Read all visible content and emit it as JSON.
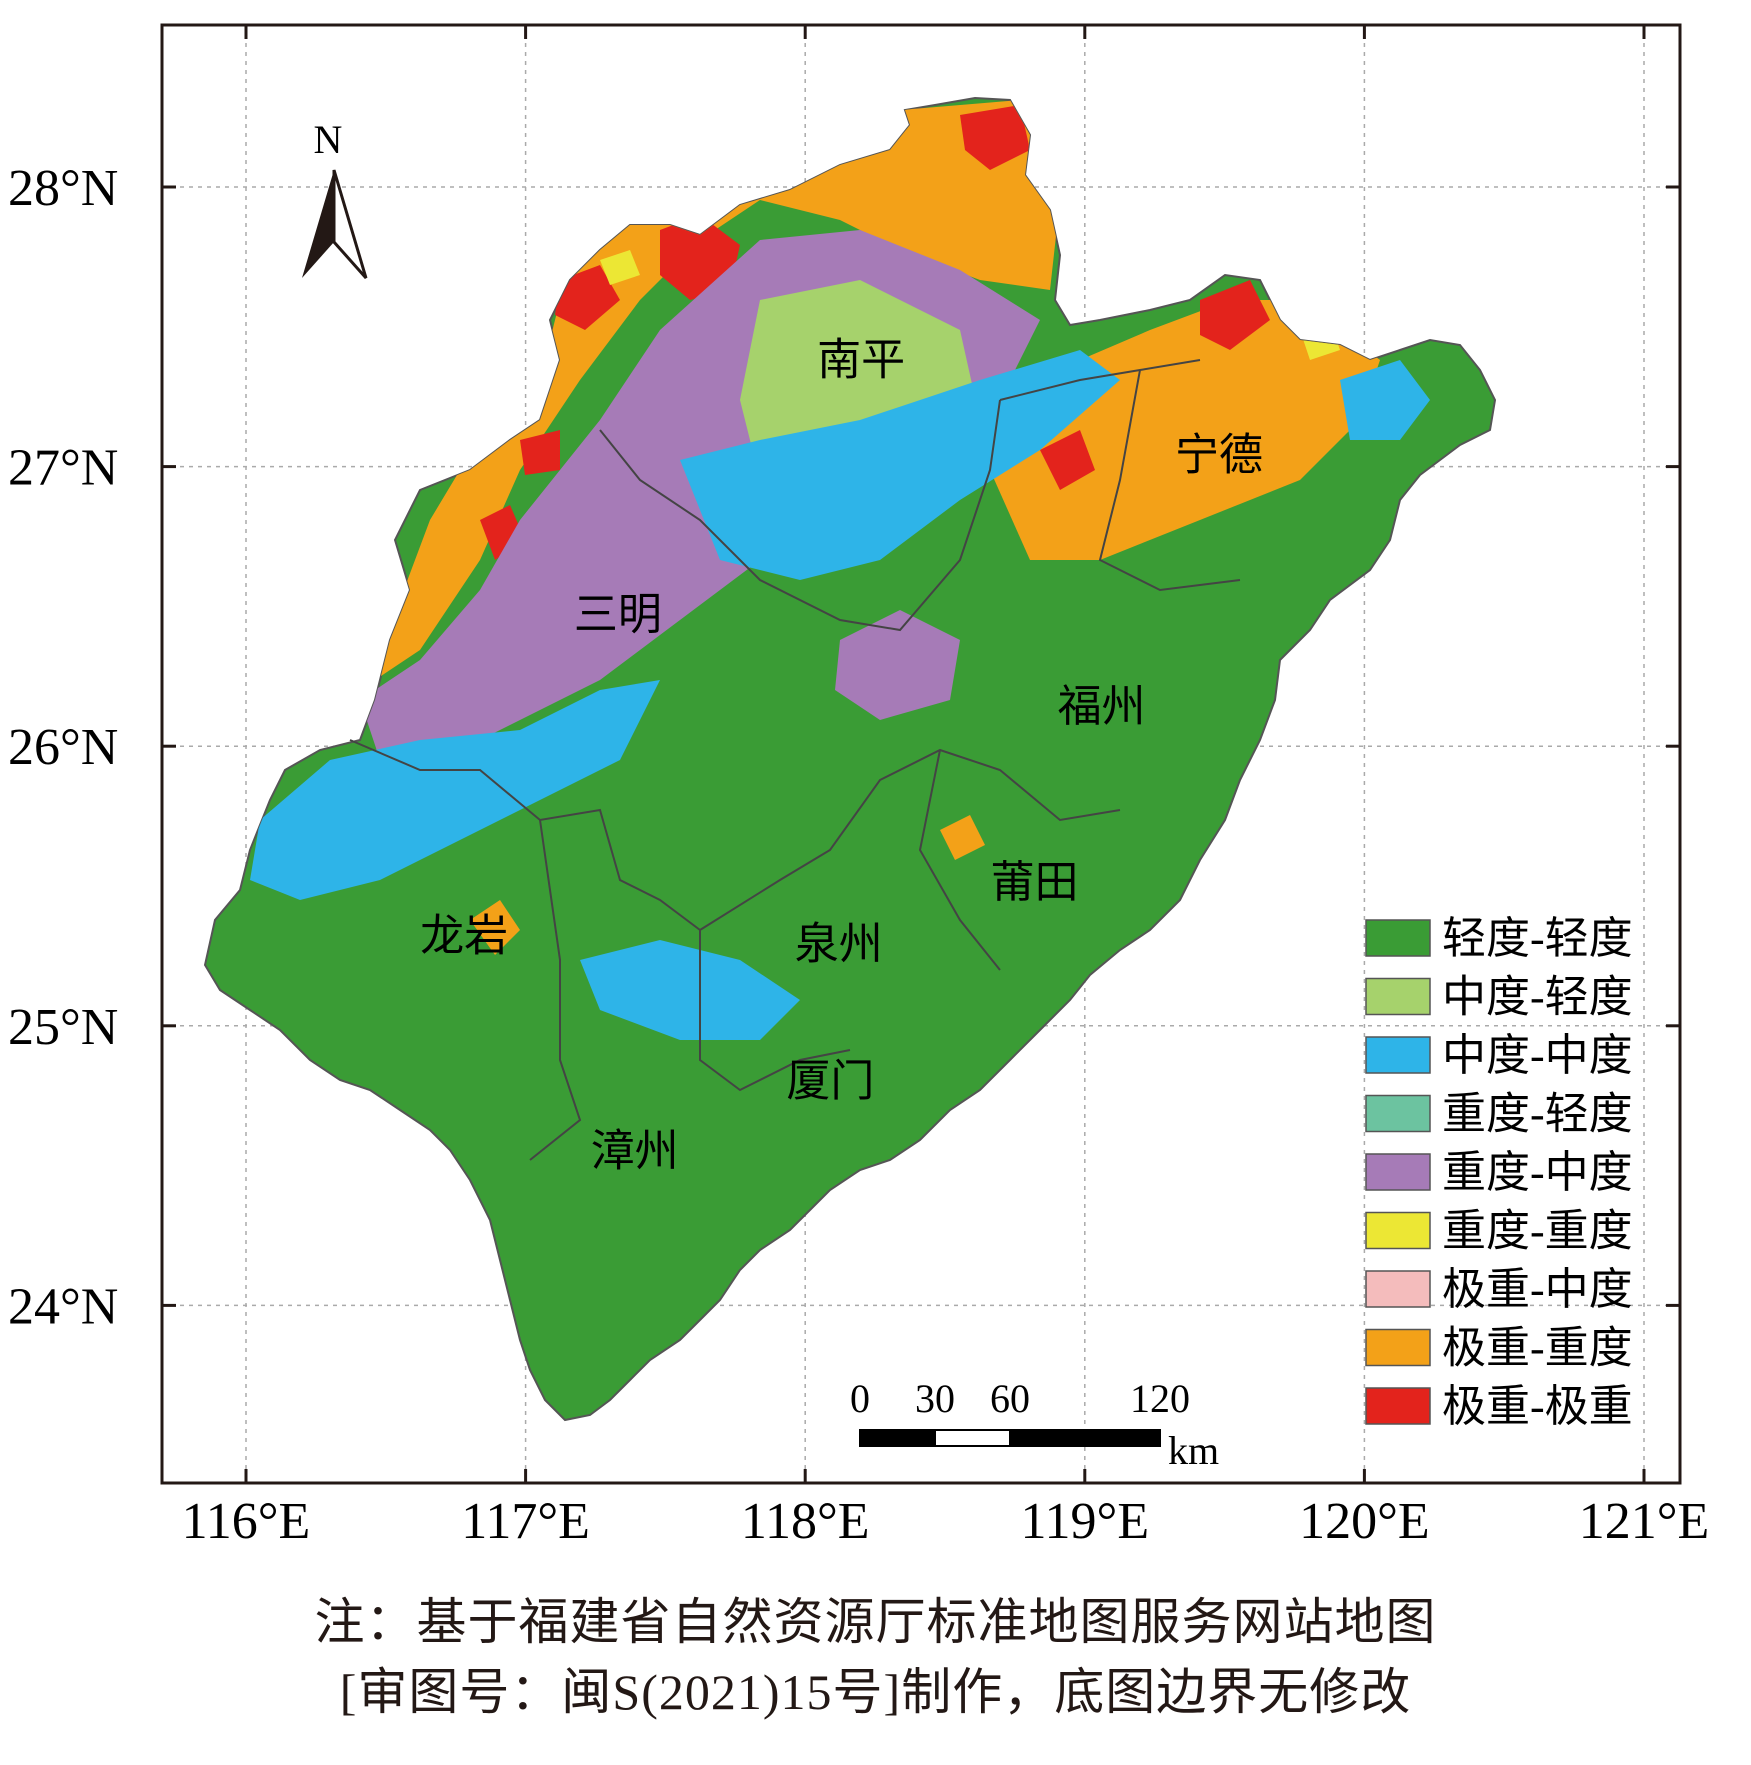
{
  "axes": {
    "lon_ticks": [
      "116°E",
      "117°E",
      "118°E",
      "119°E",
      "120°E",
      "121°E"
    ],
    "lat_ticks": [
      "28°N",
      "27°N",
      "26°N",
      "25°N",
      "24°N"
    ]
  },
  "north_arrow": {
    "label": "N",
    "icon": "north-arrow-icon"
  },
  "cities": [
    {
      "name": "南平",
      "lon": 118.2,
      "lat": 27.33
    },
    {
      "name": "宁德",
      "lon": 119.48,
      "lat": 26.99
    },
    {
      "name": "三明",
      "lon": 117.33,
      "lat": 26.42
    },
    {
      "name": "福州",
      "lon": 119.06,
      "lat": 26.09
    },
    {
      "name": "莆田",
      "lon": 118.82,
      "lat": 25.46
    },
    {
      "name": "龙岩",
      "lon": 116.78,
      "lat": 25.27
    },
    {
      "name": "泉州",
      "lon": 118.12,
      "lat": 25.24
    },
    {
      "name": "厦门",
      "lon": 118.09,
      "lat": 24.75
    },
    {
      "name": "漳州",
      "lon": 117.39,
      "lat": 24.5
    }
  ],
  "legend": [
    {
      "label": "轻度-轻度",
      "color": "#3a9c35"
    },
    {
      "label": "中度-轻度",
      "color": "#a6d26c"
    },
    {
      "label": "中度-中度",
      "color": "#2eb4e8"
    },
    {
      "label": "重度-轻度",
      "color": "#6cc3a0"
    },
    {
      "label": "重度-中度",
      "color": "#a67bb7"
    },
    {
      "label": "重度-重度",
      "color": "#ece734"
    },
    {
      "label": "极重-中度",
      "color": "#f4bcbc"
    },
    {
      "label": "极重-重度",
      "color": "#f3a118"
    },
    {
      "label": "极重-极重",
      "color": "#e3231c"
    }
  ],
  "scale_bar": {
    "labels": [
      "0",
      "30",
      "60",
      "120"
    ],
    "values_km": [
      0,
      30,
      60,
      120
    ],
    "unit": "km"
  },
  "note": {
    "line1": "注：基于福建省自然资源厅标准地图服务网站地图",
    "line2": "[审图号：闽S(2021)15号]制作，底图边界无修改"
  }
}
